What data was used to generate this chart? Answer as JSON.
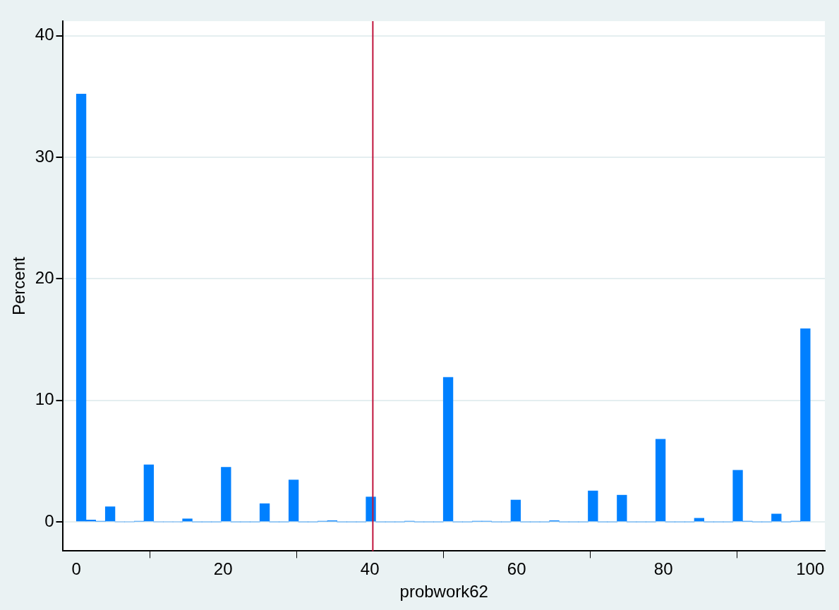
{
  "chart_data": {
    "type": "histogram",
    "xlabel": "probwork62",
    "ylabel": "Percent",
    "bins": [
      0,
      1.32,
      2.63,
      3.95,
      5.26,
      6.58,
      7.89,
      9.21,
      10.53,
      11.84,
      13.16,
      14.47,
      15.79,
      17.11,
      18.42,
      19.74,
      21.05,
      22.37,
      23.68,
      25,
      26.32,
      27.63,
      28.95,
      30.26,
      31.58,
      32.89,
      34.21,
      35.53,
      36.84,
      38.16,
      39.47,
      40.79,
      42.11,
      43.42,
      44.74,
      46.05,
      47.37,
      48.68,
      50,
      51.32,
      52.63,
      53.95,
      55.26,
      56.58,
      57.89,
      59.21,
      60.53,
      61.84,
      63.16,
      64.47,
      65.79,
      67.11,
      68.42,
      69.74,
      71.05,
      72.37,
      73.68,
      75,
      76.32,
      77.63,
      78.95,
      80.26,
      81.58,
      82.89,
      84.21,
      85.53,
      86.84,
      88.16,
      89.47,
      90.79,
      92.11,
      93.42,
      94.74,
      96.05,
      97.37,
      98.68,
      100
    ],
    "values": [
      35.2,
      0.15,
      0.05,
      1.25,
      0,
      0,
      0.05,
      4.7,
      0,
      0,
      0,
      0.25,
      0,
      0,
      0,
      4.5,
      0,
      0,
      0,
      1.5,
      0,
      0,
      3.45,
      0,
      0,
      0.05,
      0.1,
      0,
      0,
      0,
      2.05,
      0,
      0,
      0,
      0.05,
      0,
      0,
      0,
      11.9,
      0,
      0,
      0.05,
      0.05,
      0,
      0,
      1.8,
      0,
      0,
      0,
      0.1,
      0,
      0,
      0,
      2.55,
      0,
      0,
      2.2,
      0,
      0,
      0,
      6.8,
      0,
      0,
      0,
      0.3,
      0,
      0,
      0,
      4.25,
      0.05,
      0,
      0,
      0.65,
      0,
      0.05,
      15.9
    ],
    "color": "#0080ff",
    "xlim": [
      -1.8,
      102
    ],
    "xticks": [
      0,
      20,
      40,
      60,
      80,
      100
    ],
    "ylim": [
      -2.4,
      41.2
    ],
    "yticks": [
      0,
      10,
      20,
      30,
      40
    ],
    "grid": "y",
    "ref_lines": [
      {
        "axis": "x",
        "value": 40.4,
        "color": "#c0143c"
      }
    ]
  }
}
